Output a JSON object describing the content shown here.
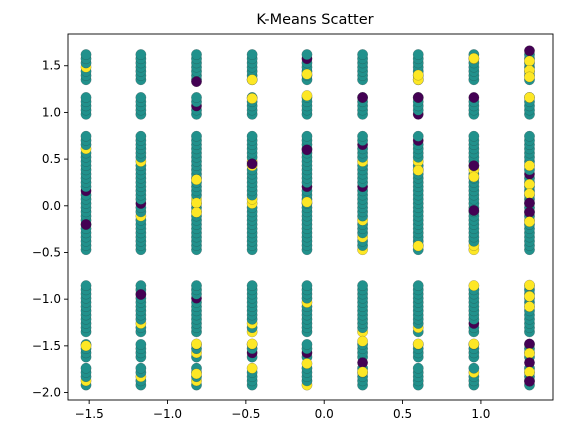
{
  "chart_data": {
    "type": "scatter",
    "title": "K-Means Scatter",
    "xlabel": "",
    "ylabel": "",
    "xlim": [
      -1.635,
      1.46
    ],
    "ylim": [
      -2.08,
      1.84
    ],
    "xticks": [
      -1.5,
      -1.0,
      -0.5,
      0.0,
      0.5,
      1.0
    ],
    "xtick_labels": [
      "−1.5",
      "−1.0",
      "−0.5",
      "0.0",
      "0.5",
      "1.0"
    ],
    "yticks": [
      -2.0,
      -1.5,
      -1.0,
      -0.5,
      0.0,
      0.5,
      1.0,
      1.5
    ],
    "ytick_labels": [
      "−2.0",
      "−1.5",
      "−1.0",
      "−0.5",
      "0.0",
      "0.5",
      "1.0",
      "1.5"
    ],
    "grid": false,
    "legend": "none",
    "cluster_colors": [
      "#440154",
      "#21918c",
      "#fde725"
    ],
    "x_columns": [
      -1.52,
      -1.17,
      -0.815,
      -0.46,
      -0.11,
      0.245,
      0.6,
      0.955,
      1.31
    ],
    "y_bands": [
      [
        1.35,
        1.66
      ],
      [
        0.98,
        1.19
      ],
      [
        -0.47,
        0.76
      ],
      [
        -1.35,
        -0.83
      ],
      [
        -1.62,
        -1.45
      ],
      [
        -1.92,
        -1.7
      ]
    ],
    "highlight_points": [
      {
        "x": -1.52,
        "y": -1.5,
        "cluster": 2
      },
      {
        "x": -1.52,
        "y": -0.2,
        "cluster": 0
      },
      {
        "x": -1.17,
        "y": -0.95,
        "cluster": 0
      },
      {
        "x": -0.815,
        "y": 1.33,
        "cluster": 0
      },
      {
        "x": -0.815,
        "y": 0.28,
        "cluster": 2
      },
      {
        "x": -0.815,
        "y": 0.03,
        "cluster": 2
      },
      {
        "x": -0.815,
        "y": -0.07,
        "cluster": 2
      },
      {
        "x": -0.815,
        "y": -1.48,
        "cluster": 2
      },
      {
        "x": -0.815,
        "y": -1.8,
        "cluster": 2
      },
      {
        "x": -0.46,
        "y": 1.35,
        "cluster": 2
      },
      {
        "x": -0.46,
        "y": 1.15,
        "cluster": 2
      },
      {
        "x": -0.46,
        "y": -1.48,
        "cluster": 2
      },
      {
        "x": -0.46,
        "y": 0.45,
        "cluster": 0
      },
      {
        "x": -0.11,
        "y": 1.41,
        "cluster": 2
      },
      {
        "x": -0.11,
        "y": 1.18,
        "cluster": 2
      },
      {
        "x": -0.11,
        "y": 0.04,
        "cluster": 2
      },
      {
        "x": -0.11,
        "y": -1.69,
        "cluster": 2
      },
      {
        "x": -0.11,
        "y": 0.6,
        "cluster": 0
      },
      {
        "x": 0.245,
        "y": 1.16,
        "cluster": 0
      },
      {
        "x": 0.245,
        "y": -1.68,
        "cluster": 0
      },
      {
        "x": 0.245,
        "y": -1.78,
        "cluster": 2
      },
      {
        "x": 0.245,
        "y": -1.45,
        "cluster": 2
      },
      {
        "x": 0.6,
        "y": 1.35,
        "cluster": 2
      },
      {
        "x": 0.6,
        "y": 1.4,
        "cluster": 2
      },
      {
        "x": 0.6,
        "y": 0.38,
        "cluster": 2
      },
      {
        "x": 0.6,
        "y": -0.43,
        "cluster": 2
      },
      {
        "x": 0.6,
        "y": -1.48,
        "cluster": 2
      },
      {
        "x": 0.6,
        "y": 1.16,
        "cluster": 0
      },
      {
        "x": 0.955,
        "y": 0.43,
        "cluster": 0
      },
      {
        "x": 0.955,
        "y": 1.58,
        "cluster": 2
      },
      {
        "x": 0.955,
        "y": 0.31,
        "cluster": 2
      },
      {
        "x": 0.955,
        "y": -1.48,
        "cluster": 2
      },
      {
        "x": 0.955,
        "y": -0.05,
        "cluster": 0
      },
      {
        "x": 1.31,
        "y": 1.66,
        "cluster": 0
      },
      {
        "x": 1.31,
        "y": 1.55,
        "cluster": 2
      },
      {
        "x": 1.31,
        "y": 1.45,
        "cluster": 2
      },
      {
        "x": 1.31,
        "y": 1.38,
        "cluster": 2
      },
      {
        "x": 1.31,
        "y": 1.16,
        "cluster": 2
      },
      {
        "x": 1.31,
        "y": 0.43,
        "cluster": 2
      },
      {
        "x": 1.31,
        "y": 0.23,
        "cluster": 2
      },
      {
        "x": 1.31,
        "y": 0.13,
        "cluster": 2
      },
      {
        "x": 1.31,
        "y": 0.03,
        "cluster": 0
      },
      {
        "x": 1.31,
        "y": -0.07,
        "cluster": 0
      },
      {
        "x": 1.31,
        "y": -0.17,
        "cluster": 2
      },
      {
        "x": 1.31,
        "y": -0.85,
        "cluster": 2
      },
      {
        "x": 1.31,
        "y": -0.97,
        "cluster": 2
      },
      {
        "x": 1.31,
        "y": -1.08,
        "cluster": 2
      },
      {
        "x": 1.31,
        "y": -1.48,
        "cluster": 0
      },
      {
        "x": 1.31,
        "y": -1.58,
        "cluster": 2
      },
      {
        "x": 1.31,
        "y": -1.68,
        "cluster": 0
      },
      {
        "x": 1.31,
        "y": -1.78,
        "cluster": 2
      },
      {
        "x": 1.31,
        "y": -1.88,
        "cluster": 0
      }
    ]
  }
}
